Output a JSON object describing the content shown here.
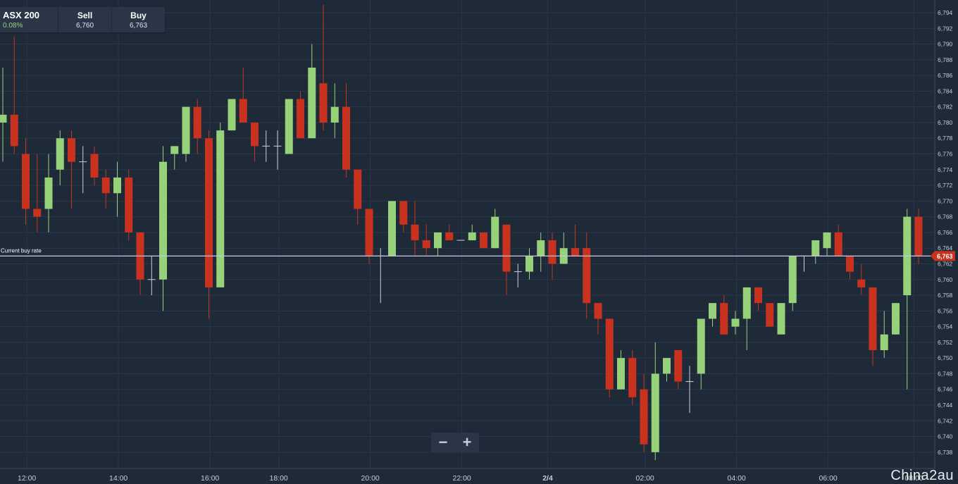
{
  "instrument": {
    "name": "ASX 200",
    "change": "0.08%",
    "sell_label": "Sell",
    "sell_value": "6,760",
    "buy_label": "Buy",
    "buy_value": "6,763"
  },
  "zoom": {
    "minus_symbol": "−",
    "plus_symbol": "+"
  },
  "watermark": "China2au",
  "colors": {
    "background": "#1f2a38",
    "up": "#97d17a",
    "down": "#c8321f",
    "buy_line": "#c9c9e6",
    "grid": "#28374a"
  },
  "chart_data": {
    "type": "candlestick",
    "title": "ASX 200",
    "ylim": [
      6737,
      6795
    ],
    "y_ticks": [
      6738,
      6740,
      6742,
      6744,
      6746,
      6748,
      6750,
      6752,
      6754,
      6756,
      6758,
      6760,
      6762,
      6764,
      6766,
      6768,
      6770,
      6772,
      6774,
      6776,
      6778,
      6780,
      6782,
      6784,
      6786,
      6788,
      6790,
      6792,
      6794
    ],
    "x_tick_labels": [
      "12:00",
      "14:00",
      "16:00",
      "18:00",
      "20:00",
      "22:00",
      "2/4",
      "02:00",
      "04:00",
      "06:00",
      "08:00"
    ],
    "x_tick_index": [
      2.1,
      10.1,
      18.1,
      24.1,
      32.1,
      40.1,
      47.6,
      56.1,
      64.1,
      72.1,
      79.6
    ],
    "current_buy_rate": {
      "label": "Current buy rate",
      "value": 6763,
      "value_label": "6,763"
    },
    "candles": [
      {
        "o": 6780,
        "c": 6781,
        "h": 6787,
        "l": 6775
      },
      {
        "o": 6781,
        "c": 6777,
        "h": 6791,
        "l": 6776
      },
      {
        "o": 6776,
        "c": 6769,
        "h": 6778,
        "l": 6767
      },
      {
        "o": 6769,
        "c": 6768,
        "h": 6776,
        "l": 6766
      },
      {
        "o": 6769,
        "c": 6773,
        "h": 6776,
        "l": 6766
      },
      {
        "o": 6774,
        "c": 6778,
        "h": 6779,
        "l": 6772
      },
      {
        "o": 6778,
        "c": 6775,
        "h": 6779,
        "l": 6769
      },
      {
        "o": 6775,
        "c": 6775,
        "h": 6777,
        "l": 6771
      },
      {
        "o": 6776,
        "c": 6773,
        "h": 6777,
        "l": 6772
      },
      {
        "o": 6773,
        "c": 6771,
        "h": 6774,
        "l": 6769
      },
      {
        "o": 6771,
        "c": 6773,
        "h": 6775,
        "l": 6768
      },
      {
        "o": 6773,
        "c": 6766,
        "h": 6774,
        "l": 6765
      },
      {
        "o": 6766,
        "c": 6760,
        "h": 6766,
        "l": 6758
      },
      {
        "o": 6760,
        "c": 6760,
        "h": 6763,
        "l": 6758
      },
      {
        "o": 6760,
        "c": 6775,
        "h": 6777,
        "l": 6756
      },
      {
        "o": 6776,
        "c": 6777,
        "h": 6777,
        "l": 6774
      },
      {
        "o": 6776,
        "c": 6782,
        "h": 6782,
        "l": 6775
      },
      {
        "o": 6782,
        "c": 6778,
        "h": 6783,
        "l": 6776
      },
      {
        "o": 6778,
        "c": 6759,
        "h": 6779,
        "l": 6755
      },
      {
        "o": 6759,
        "c": 6779,
        "h": 6780,
        "l": 6759
      },
      {
        "o": 6779,
        "c": 6783,
        "h": 6783,
        "l": 6779
      },
      {
        "o": 6783,
        "c": 6780,
        "h": 6787,
        "l": 6780
      },
      {
        "o": 6780,
        "c": 6777,
        "h": 6780,
        "l": 6775
      },
      {
        "o": 6777,
        "c": 6777,
        "h": 6779,
        "l": 6775
      },
      {
        "o": 6777,
        "c": 6777,
        "h": 6779,
        "l": 6774
      },
      {
        "o": 6776,
        "c": 6783,
        "h": 6783,
        "l": 6776
      },
      {
        "o": 6783,
        "c": 6778,
        "h": 6784,
        "l": 6778
      },
      {
        "o": 6778,
        "c": 6787,
        "h": 6790,
        "l": 6778
      },
      {
        "o": 6785,
        "c": 6780,
        "h": 6795,
        "l": 6779
      },
      {
        "o": 6780,
        "c": 6782,
        "h": 6785,
        "l": 6778
      },
      {
        "o": 6782,
        "c": 6774,
        "h": 6785,
        "l": 6773
      },
      {
        "o": 6774,
        "c": 6769,
        "h": 6774,
        "l": 6767
      },
      {
        "o": 6769,
        "c": 6763,
        "h": 6769,
        "l": 6762
      },
      {
        "o": 6763,
        "c": 6763,
        "h": 6764,
        "l": 6757
      },
      {
        "o": 6763,
        "c": 6770,
        "h": 6770,
        "l": 6763
      },
      {
        "o": 6770,
        "c": 6767,
        "h": 6770,
        "l": 6766
      },
      {
        "o": 6767,
        "c": 6765,
        "h": 6770,
        "l": 6763
      },
      {
        "o": 6765,
        "c": 6764,
        "h": 6767,
        "l": 6763
      },
      {
        "o": 6764,
        "c": 6766,
        "h": 6766,
        "l": 6763
      },
      {
        "o": 6766,
        "c": 6765,
        "h": 6767,
        "l": 6765
      },
      {
        "o": 6765,
        "c": 6765,
        "h": 6765,
        "l": 6765
      },
      {
        "o": 6765,
        "c": 6766,
        "h": 6767,
        "l": 6765
      },
      {
        "o": 6766,
        "c": 6764,
        "h": 6766,
        "l": 6764
      },
      {
        "o": 6764,
        "c": 6768,
        "h": 6769,
        "l": 6764
      },
      {
        "o": 6767,
        "c": 6761,
        "h": 6767,
        "l": 6758
      },
      {
        "o": 6761,
        "c": 6761,
        "h": 6762,
        "l": 6759
      },
      {
        "o": 6761,
        "c": 6763,
        "h": 6764,
        "l": 6760
      },
      {
        "o": 6763,
        "c": 6765,
        "h": 6766,
        "l": 6761
      },
      {
        "o": 6765,
        "c": 6762,
        "h": 6766,
        "l": 6760
      },
      {
        "o": 6762,
        "c": 6764,
        "h": 6766,
        "l": 6762
      },
      {
        "o": 6764,
        "c": 6763,
        "h": 6767,
        "l": 6763
      },
      {
        "o": 6764,
        "c": 6757,
        "h": 6766,
        "l": 6755
      },
      {
        "o": 6757,
        "c": 6755,
        "h": 6757,
        "l": 6753
      },
      {
        "o": 6755,
        "c": 6746,
        "h": 6755,
        "l": 6745
      },
      {
        "o": 6746,
        "c": 6750,
        "h": 6751,
        "l": 6746
      },
      {
        "o": 6750,
        "c": 6745,
        "h": 6751,
        "l": 6744
      },
      {
        "o": 6746,
        "c": 6739,
        "h": 6748,
        "l": 6738
      },
      {
        "o": 6738,
        "c": 6748,
        "h": 6752,
        "l": 6737
      },
      {
        "o": 6748,
        "c": 6750,
        "h": 6750,
        "l": 6747
      },
      {
        "o": 6751,
        "c": 6747,
        "h": 6751,
        "l": 6746
      },
      {
        "o": 6747,
        "c": 6747,
        "h": 6749,
        "l": 6743
      },
      {
        "o": 6748,
        "c": 6755,
        "h": 6755,
        "l": 6746
      },
      {
        "o": 6755,
        "c": 6757,
        "h": 6757,
        "l": 6754
      },
      {
        "o": 6757,
        "c": 6753,
        "h": 6758,
        "l": 6753
      },
      {
        "o": 6754,
        "c": 6755,
        "h": 6756,
        "l": 6753
      },
      {
        "o": 6755,
        "c": 6759,
        "h": 6759,
        "l": 6751
      },
      {
        "o": 6759,
        "c": 6757,
        "h": 6759,
        "l": 6756
      },
      {
        "o": 6757,
        "c": 6754,
        "h": 6757,
        "l": 6754
      },
      {
        "o": 6753,
        "c": 6757,
        "h": 6757,
        "l": 6753
      },
      {
        "o": 6757,
        "c": 6763,
        "h": 6763,
        "l": 6756
      },
      {
        "o": 6763,
        "c": 6763,
        "h": 6763,
        "l": 6761
      },
      {
        "o": 6763,
        "c": 6765,
        "h": 6765,
        "l": 6762
      },
      {
        "o": 6764,
        "c": 6766,
        "h": 6766,
        "l": 6763
      },
      {
        "o": 6766,
        "c": 6763,
        "h": 6767,
        "l": 6763
      },
      {
        "o": 6763,
        "c": 6761,
        "h": 6763,
        "l": 6760
      },
      {
        "o": 6760,
        "c": 6759,
        "h": 6762,
        "l": 6758
      },
      {
        "o": 6759,
        "c": 6751,
        "h": 6759,
        "l": 6749
      },
      {
        "o": 6751,
        "c": 6753,
        "h": 6756,
        "l": 6750
      },
      {
        "o": 6753,
        "c": 6757,
        "h": 6757,
        "l": 6753
      },
      {
        "o": 6758,
        "c": 6768,
        "h": 6769,
        "l": 6746
      },
      {
        "o": 6768,
        "c": 6763,
        "h": 6769,
        "l": 6762
      }
    ]
  }
}
